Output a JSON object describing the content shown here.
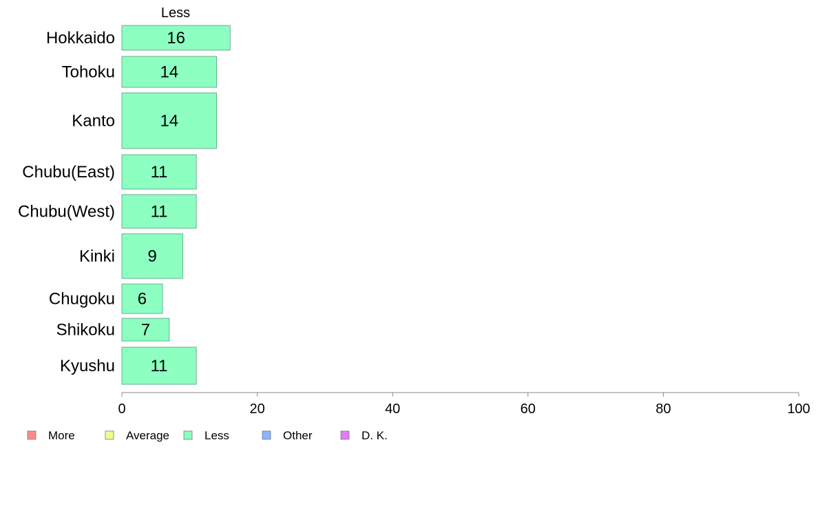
{
  "chart_data": {
    "type": "bar",
    "orientation": "horizontal",
    "variable_width": true,
    "title": "Less",
    "categories": [
      "Hokkaido",
      "Tohoku",
      "Kanto",
      "Chubu(East)",
      "Chubu(West)",
      "Kinki",
      "Chugoku",
      "Shikoku",
      "Kyushu"
    ],
    "series": [
      {
        "name": "Less",
        "values": [
          16,
          14,
          14,
          11,
          11,
          9,
          6,
          7,
          11
        ],
        "data_labels": [
          "16",
          "14",
          "14",
          "11",
          "11",
          "9",
          "6",
          "7",
          "11"
        ],
        "color": "#8dffc1"
      }
    ],
    "xlim": [
      0,
      100
    ],
    "x_ticks": [
      "0",
      "20",
      "40",
      "60",
      "80",
      "100"
    ],
    "grid": false,
    "legend_position": "bottom-left",
    "legend": [
      {
        "label": "More",
        "color": "#ff8c8c"
      },
      {
        "label": "Average",
        "color": "#ecff8c"
      },
      {
        "label": "Less",
        "color": "#8dffc1"
      },
      {
        "label": "Other",
        "color": "#8cb4ff"
      },
      {
        "label": "D. K.",
        "color": "#e27cf5"
      }
    ]
  }
}
